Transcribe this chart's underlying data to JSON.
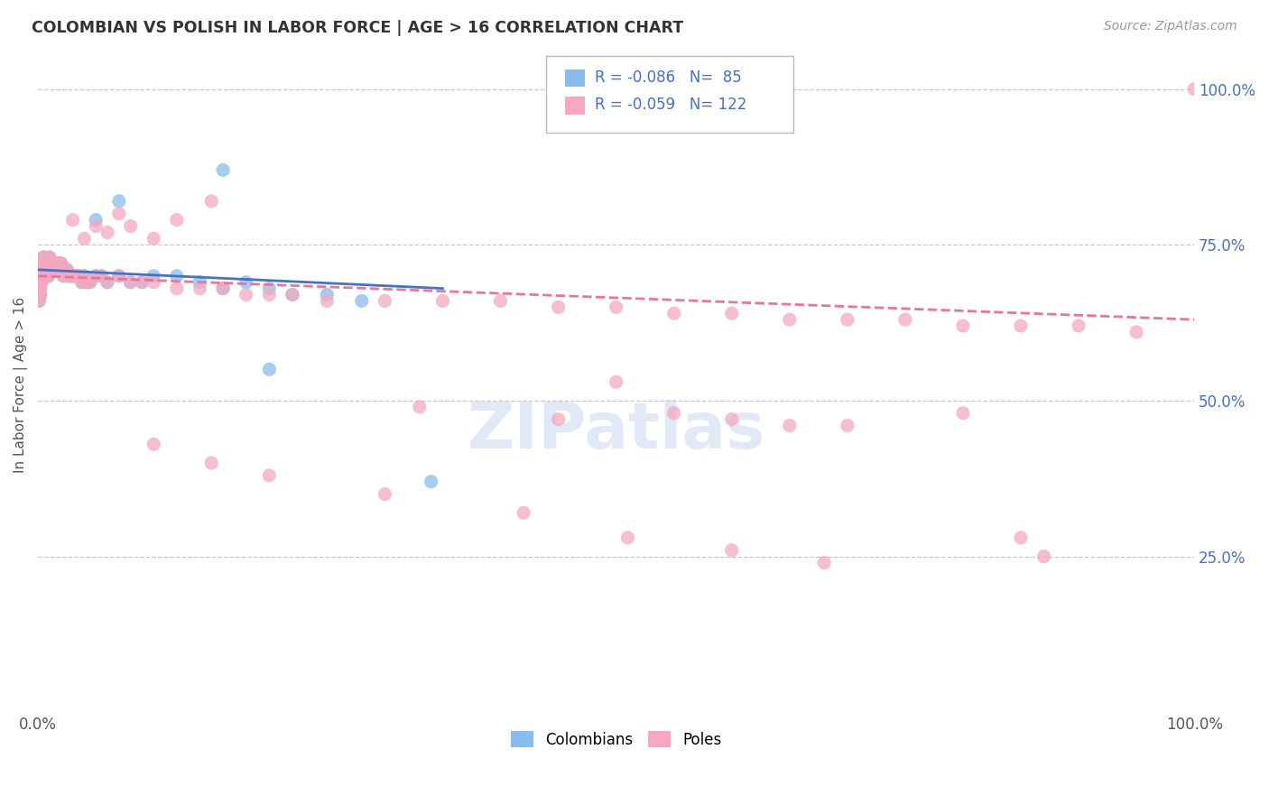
{
  "title": "COLOMBIAN VS POLISH IN LABOR FORCE | AGE > 16 CORRELATION CHART",
  "source_text": "Source: ZipAtlas.com",
  "ylabel": "In Labor Force | Age > 16",
  "watermark": "ZIPatlas",
  "legend": {
    "colombians_R": -0.086,
    "colombians_N": 85,
    "poles_R": -0.059,
    "poles_N": 122,
    "label1": "Colombians",
    "label2": "Poles"
  },
  "blue_color": "#89BCEC",
  "pink_color": "#F5A8BF",
  "trend_blue": "#4472C4",
  "trend_pink": "#E8759A",
  "background_color": "#FFFFFF",
  "grid_color": "#C8C8C8",
  "colombians_x": [
    0.0,
    0.0,
    0.001,
    0.001,
    0.001,
    0.001,
    0.001,
    0.001,
    0.002,
    0.002,
    0.002,
    0.002,
    0.002,
    0.003,
    0.003,
    0.003,
    0.003,
    0.004,
    0.004,
    0.004,
    0.005,
    0.005,
    0.005,
    0.005,
    0.006,
    0.006,
    0.006,
    0.007,
    0.007,
    0.007,
    0.008,
    0.008,
    0.008,
    0.009,
    0.009,
    0.01,
    0.01,
    0.01,
    0.011,
    0.011,
    0.012,
    0.012,
    0.013,
    0.013,
    0.014,
    0.015,
    0.015,
    0.016,
    0.017,
    0.018,
    0.019,
    0.02,
    0.021,
    0.022,
    0.023,
    0.025,
    0.026,
    0.028,
    0.03,
    0.032,
    0.035,
    0.038,
    0.04,
    0.042,
    0.045,
    0.05,
    0.055,
    0.06,
    0.07,
    0.08,
    0.09,
    0.1,
    0.12,
    0.14,
    0.16,
    0.18,
    0.2,
    0.22,
    0.25,
    0.28,
    0.05,
    0.07,
    0.16,
    0.2,
    0.34
  ],
  "colombians_y": [
    0.7,
    0.68,
    0.72,
    0.7,
    0.69,
    0.68,
    0.67,
    0.66,
    0.71,
    0.7,
    0.69,
    0.68,
    0.67,
    0.72,
    0.71,
    0.7,
    0.69,
    0.72,
    0.71,
    0.7,
    0.73,
    0.72,
    0.71,
    0.7,
    0.72,
    0.71,
    0.7,
    0.72,
    0.71,
    0.7,
    0.72,
    0.71,
    0.7,
    0.72,
    0.7,
    0.73,
    0.72,
    0.71,
    0.72,
    0.71,
    0.72,
    0.71,
    0.72,
    0.71,
    0.72,
    0.72,
    0.71,
    0.72,
    0.72,
    0.72,
    0.72,
    0.72,
    0.71,
    0.7,
    0.71,
    0.71,
    0.7,
    0.7,
    0.7,
    0.7,
    0.7,
    0.69,
    0.7,
    0.69,
    0.69,
    0.7,
    0.7,
    0.69,
    0.7,
    0.69,
    0.69,
    0.7,
    0.7,
    0.69,
    0.68,
    0.69,
    0.68,
    0.67,
    0.67,
    0.66,
    0.79,
    0.82,
    0.87,
    0.55,
    0.37
  ],
  "poles_x": [
    0.0,
    0.0,
    0.001,
    0.001,
    0.001,
    0.001,
    0.001,
    0.001,
    0.002,
    0.002,
    0.002,
    0.002,
    0.002,
    0.003,
    0.003,
    0.003,
    0.003,
    0.004,
    0.004,
    0.004,
    0.005,
    0.005,
    0.005,
    0.005,
    0.006,
    0.006,
    0.006,
    0.007,
    0.007,
    0.007,
    0.008,
    0.008,
    0.008,
    0.009,
    0.009,
    0.01,
    0.01,
    0.01,
    0.011,
    0.011,
    0.012,
    0.012,
    0.013,
    0.013,
    0.014,
    0.015,
    0.015,
    0.016,
    0.017,
    0.018,
    0.019,
    0.02,
    0.021,
    0.022,
    0.023,
    0.025,
    0.026,
    0.028,
    0.03,
    0.032,
    0.035,
    0.038,
    0.04,
    0.042,
    0.045,
    0.05,
    0.055,
    0.06,
    0.07,
    0.08,
    0.09,
    0.1,
    0.12,
    0.14,
    0.16,
    0.18,
    0.2,
    0.22,
    0.25,
    0.3,
    0.35,
    0.4,
    0.45,
    0.5,
    0.55,
    0.6,
    0.65,
    0.7,
    0.75,
    0.8,
    0.85,
    0.9,
    0.95,
    1.0,
    0.03,
    0.05,
    0.07,
    0.1,
    0.15,
    0.04,
    0.06,
    0.08,
    0.12,
    0.33,
    0.45,
    0.5,
    0.55,
    0.6,
    0.65,
    0.7,
    0.8,
    0.85,
    0.87,
    0.1,
    0.15,
    0.2,
    0.3,
    0.42,
    0.51,
    0.6,
    0.68
  ],
  "poles_y": [
    0.7,
    0.68,
    0.72,
    0.7,
    0.69,
    0.68,
    0.67,
    0.66,
    0.71,
    0.7,
    0.69,
    0.68,
    0.67,
    0.72,
    0.71,
    0.7,
    0.69,
    0.72,
    0.71,
    0.7,
    0.73,
    0.72,
    0.71,
    0.7,
    0.72,
    0.71,
    0.7,
    0.72,
    0.71,
    0.7,
    0.72,
    0.71,
    0.7,
    0.72,
    0.7,
    0.73,
    0.72,
    0.71,
    0.72,
    0.71,
    0.72,
    0.71,
    0.72,
    0.71,
    0.72,
    0.72,
    0.71,
    0.72,
    0.72,
    0.72,
    0.72,
    0.72,
    0.71,
    0.7,
    0.71,
    0.71,
    0.7,
    0.7,
    0.7,
    0.7,
    0.7,
    0.69,
    0.7,
    0.69,
    0.69,
    0.7,
    0.7,
    0.69,
    0.7,
    0.69,
    0.69,
    0.69,
    0.68,
    0.68,
    0.68,
    0.67,
    0.67,
    0.67,
    0.66,
    0.66,
    0.66,
    0.66,
    0.65,
    0.65,
    0.64,
    0.64,
    0.63,
    0.63,
    0.63,
    0.62,
    0.62,
    0.62,
    0.61,
    1.0,
    0.79,
    0.78,
    0.8,
    0.76,
    0.82,
    0.76,
    0.77,
    0.78,
    0.79,
    0.49,
    0.47,
    0.53,
    0.48,
    0.47,
    0.46,
    0.46,
    0.48,
    0.28,
    0.25,
    0.43,
    0.4,
    0.38,
    0.35,
    0.32,
    0.28,
    0.26,
    0.24
  ],
  "trend_blue_start_x": 0.0,
  "trend_blue_end_x": 0.35,
  "trend_blue_start_y": 0.71,
  "trend_blue_end_y": 0.68,
  "trend_pink_start_x": 0.0,
  "trend_pink_end_x": 1.0,
  "trend_pink_start_y": 0.7,
  "trend_pink_end_y": 0.63,
  "xlim": [
    0.0,
    1.0
  ],
  "ylim": [
    0.0,
    1.05
  ],
  "ytick_values": [
    0.25,
    0.5,
    0.75,
    1.0
  ],
  "ytick_labels": [
    "25.0%",
    "50.0%",
    "75.0%",
    "100.0%"
  ]
}
